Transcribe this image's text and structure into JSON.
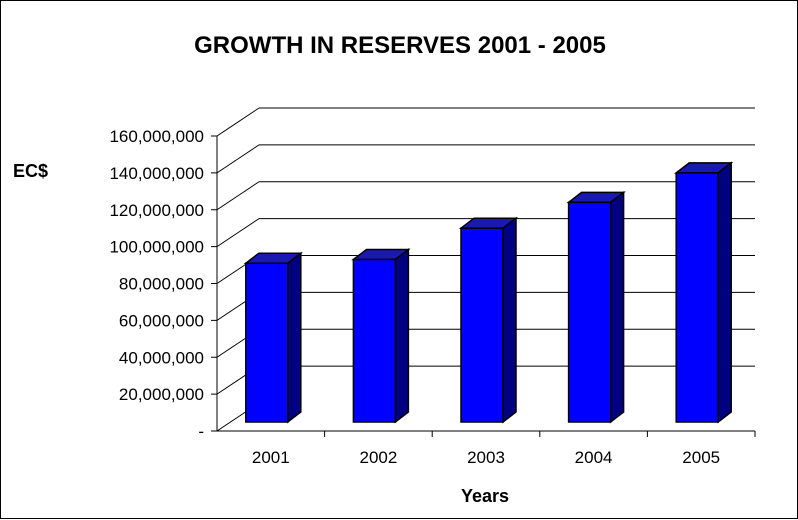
{
  "chart_data": {
    "type": "bar",
    "title": "GROWTH IN RESERVES 2001 - 2005",
    "xlabel": "Years",
    "ylabel": "EC$",
    "categories": [
      "2001",
      "2002",
      "2003",
      "2004",
      "2005"
    ],
    "values": [
      91000000,
      93000000,
      110000000,
      124000000,
      140000000
    ],
    "ylim": [
      0,
      160000000
    ],
    "y_ticks": [
      0,
      20000000,
      40000000,
      60000000,
      80000000,
      100000000,
      120000000,
      140000000,
      160000000
    ],
    "y_tick_labels": [
      "-",
      "20,000,000",
      "40,000,000",
      "60,000,000",
      "80,000,000",
      "100,000,000",
      "120,000,000",
      "140,000,000",
      "160,000,000"
    ],
    "grid": true,
    "legend": "none",
    "style": "3d-bar",
    "colors": {
      "bar_front": "#0000FF",
      "bar_top": "#1A1AB3",
      "bar_side": "#000080",
      "bar_outline": "#000000",
      "gridline": "#000000"
    }
  }
}
